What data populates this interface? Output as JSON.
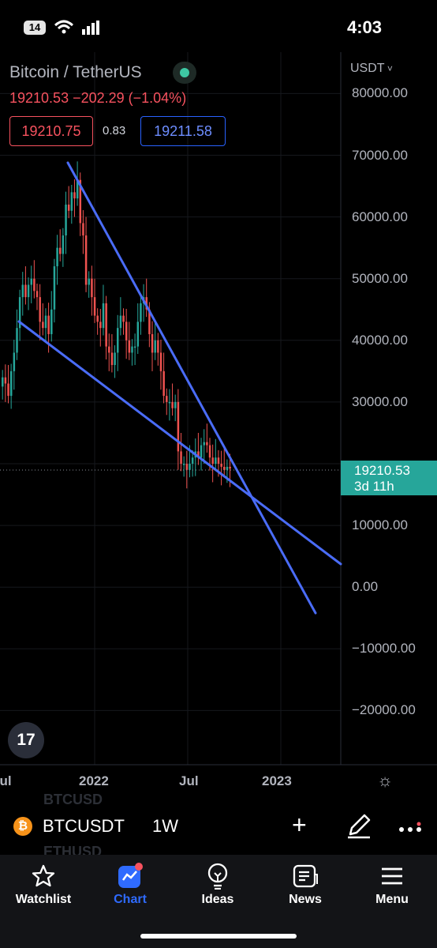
{
  "status_bar": {
    "time": "4:03",
    "badge": "14"
  },
  "header": {
    "title": "Bitcoin / TetherUS",
    "quote": "19210.53  −202.29 (−1.04%)",
    "sell_price": "19210.75",
    "spread": "0.83",
    "buy_price": "19211.58"
  },
  "price_axis": {
    "currency": "USDT",
    "ticks": [
      "80000.00",
      "70000.00",
      "60000.00",
      "50000.00",
      "40000.00",
      "30000.00",
      "10000.00",
      "0.00",
      "−10000.00",
      "−20000.00"
    ],
    "last_price": "19210.53",
    "countdown": "3d 11h"
  },
  "time_axis": {
    "ticks": [
      "Jul",
      "2022",
      "Jul",
      "2023"
    ]
  },
  "logo_text": "17",
  "symbol_bar": {
    "symbol": "BTCUSDT",
    "interval": "1W",
    "ghost_above": "BTCUSD",
    "ghost_below": "ETHUSD",
    "coin_glyph": "₿"
  },
  "nav": {
    "items": [
      {
        "label": "Watchlist",
        "icon": "star-icon"
      },
      {
        "label": "Chart",
        "icon": "chart-icon"
      },
      {
        "label": "Ideas",
        "icon": "lightbulb-icon"
      },
      {
        "label": "News",
        "icon": "news-icon"
      },
      {
        "label": "Menu",
        "icon": "hamburger-icon"
      }
    ]
  },
  "colors": {
    "up": "#26a69a",
    "down": "#ef5350",
    "accent": "#2f6bff",
    "trendline": "#4a6cf7"
  },
  "chart_data": {
    "type": "candlestick",
    "interval": "1W",
    "ylim": [
      -25000,
      85000
    ],
    "y_ticks": [
      80000,
      70000,
      60000,
      50000,
      40000,
      30000,
      10000,
      0,
      -10000,
      -20000
    ],
    "x_ticks": [
      "Jul",
      "2022",
      "Jul",
      "2023"
    ],
    "last_price": 19210.53,
    "path_close": [
      34000,
      33000,
      31000,
      35000,
      38000,
      42000,
      47000,
      49000,
      47000,
      49000,
      50000,
      48000,
      47000,
      43000,
      42000,
      44000,
      41000,
      45000,
      52000,
      55000,
      54000,
      57000,
      62000,
      61000,
      64000,
      63000,
      66000,
      59000,
      57000,
      49000,
      50000,
      47000,
      44000,
      43000,
      42000,
      46000,
      39000,
      38000,
      36000,
      38000,
      42000,
      44000,
      43000,
      40000,
      38000,
      39000,
      39000,
      43000,
      46000,
      47000,
      45000,
      41000,
      38000,
      40000,
      38000,
      35000,
      31000,
      30000,
      30000,
      29000,
      30000,
      22000,
      20000,
      20000,
      19000,
      20000,
      21000,
      22000,
      21000,
      23000,
      23500,
      23000,
      21000,
      20000,
      21000,
      20000,
      19500,
      19000,
      19500,
      19210
    ],
    "trendlines": [
      {
        "from": [
          "2021-11",
          69000
        ],
        "to": [
          "2023-03",
          -4000
        ]
      },
      {
        "from": [
          "2021-08",
          43000
        ],
        "to": [
          "2023-04",
          4000
        ]
      }
    ]
  }
}
